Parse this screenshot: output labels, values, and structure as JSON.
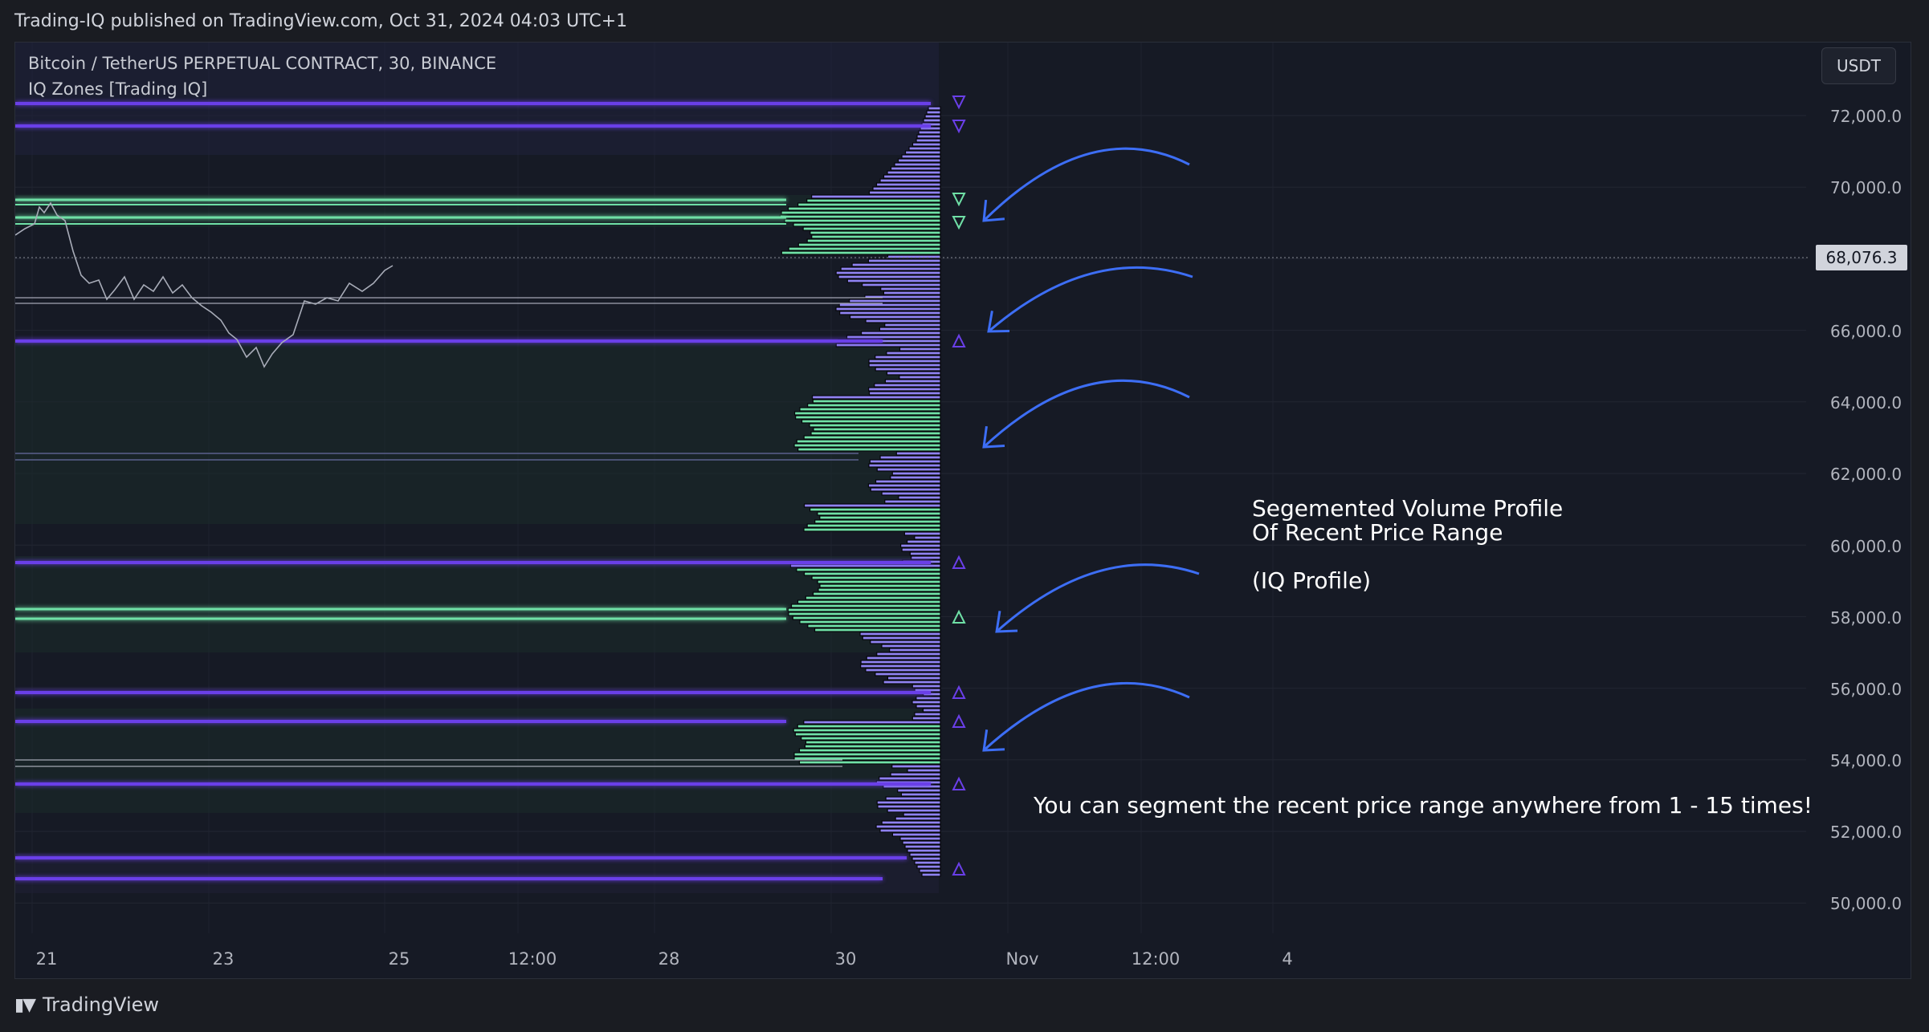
{
  "header": {
    "publish_text": "Trading-IQ published on TradingView.com, Oct 31, 2024 04:03 UTC+1"
  },
  "chart": {
    "symbol": "Bitcoin / TetherUS PERPETUAL CONTRACT, 30, BINANCE",
    "indicator": "IQ Zones [Trading IQ]",
    "currency_button": "USDT",
    "last_price": "68,076.3",
    "price_axis": [
      "72,000.0",
      "70,000.0",
      "66,000.0",
      "64,000.0",
      "62,000.0",
      "60,000.0",
      "58,000.0",
      "56,000.0",
      "54,000.0",
      "52,000.0",
      "50,000.0"
    ],
    "time_axis": [
      "21",
      "23",
      "25",
      "12:00",
      "28",
      "30",
      "Nov",
      "12:00",
      "4"
    ],
    "annotation_profile_lines": [
      "Segemented Volume Profile",
      "Of Recent Price Range"
    ],
    "annotation_profile_name": "(IQ Profile)",
    "annotation_segment": "You can segment the recent price range anywhere from 1 - 15 times!"
  },
  "colors": {
    "purple": "#6a3fe8",
    "green": "#6fe0a6",
    "profile_purple": "#8f82f0",
    "arrow": "#3d6ef5",
    "background": "#161a25"
  },
  "footer": {
    "brand": "TradingView",
    "logo_icon": "tradingview-logo-icon"
  }
}
